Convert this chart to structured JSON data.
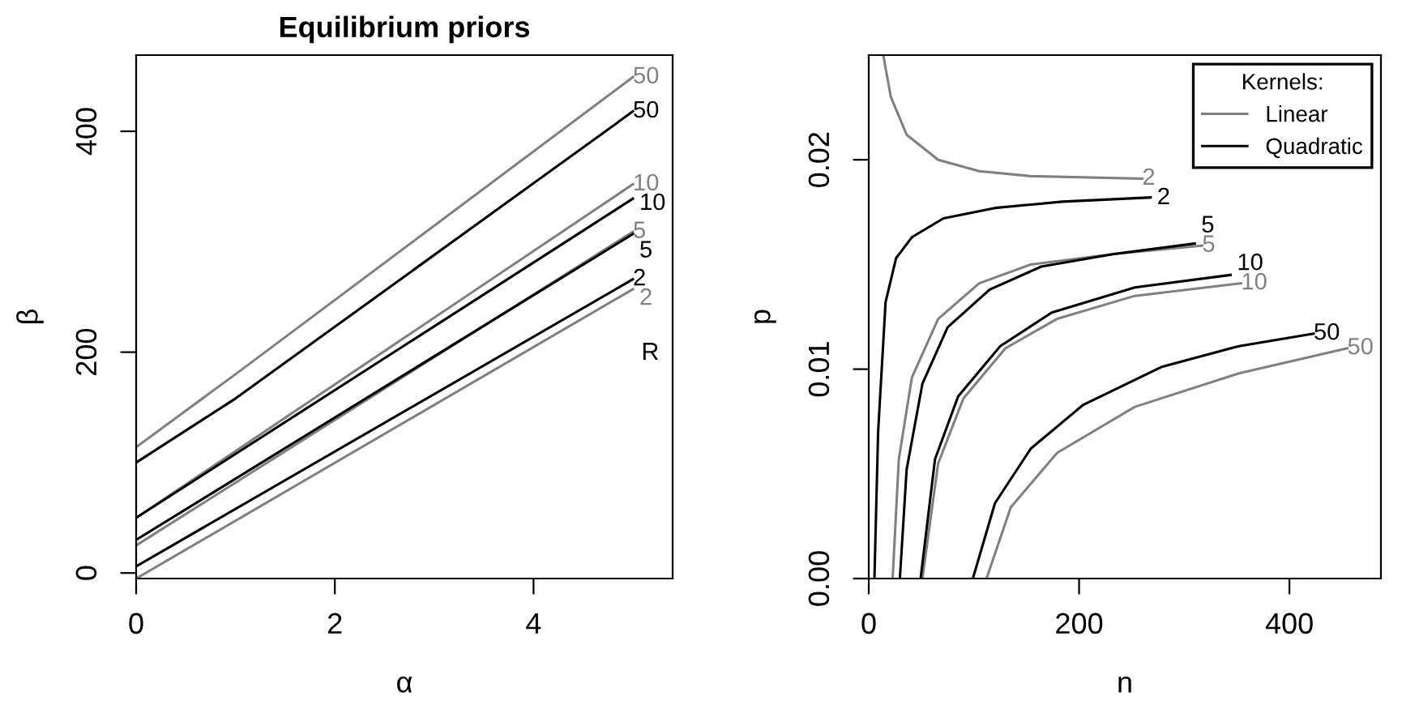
{
  "chart_data": [
    {
      "type": "line",
      "title": "Equilibrium priors",
      "xlabel": "α",
      "ylabel": "β",
      "xlim": [
        0,
        5.4
      ],
      "ylim": [
        -5,
        469
      ],
      "xticks": [
        0,
        2,
        4
      ],
      "yticks": [
        0,
        200,
        400
      ],
      "grid": false,
      "legend": false,
      "line_style": "solid",
      "marker": "none",
      "annotations": [
        "R"
      ],
      "series": [
        {
          "name": "50",
          "color": "#808080",
          "x": [
            0,
            1,
            5
          ],
          "values": [
            114,
            180,
            449
          ]
        },
        {
          "name": "50",
          "color": "#000000",
          "x": [
            0,
            1,
            5
          ],
          "values": [
            100,
            158,
            418
          ]
        },
        {
          "name": "10",
          "color": "#808080",
          "x": [
            0,
            5
          ],
          "values": [
            50,
            352
          ]
        },
        {
          "name": "10",
          "color": "#000000",
          "x": [
            0,
            5
          ],
          "values": [
            50,
            339
          ]
        },
        {
          "name": "5",
          "color": "#808080",
          "x": [
            0,
            5
          ],
          "values": [
            25,
            309
          ]
        },
        {
          "name": "5",
          "color": "#000000",
          "x": [
            0,
            5
          ],
          "values": [
            30,
            307
          ]
        },
        {
          "name": "2",
          "color": "#000000",
          "x": [
            0,
            5
          ],
          "values": [
            6,
            266
          ]
        },
        {
          "name": "2",
          "color": "#808080",
          "x": [
            0,
            5
          ],
          "values": [
            -5,
            257
          ]
        }
      ]
    },
    {
      "type": "line",
      "xlabel": "n",
      "ylabel": "p",
      "xlim": [
        0,
        487
      ],
      "ylim": [
        0,
        0.025
      ],
      "xticks": [
        0,
        200,
        400
      ],
      "yticks": [
        {
          "value": 0,
          "label": "0.00"
        },
        0.01,
        0.02
      ],
      "grid": false,
      "legend": "top right",
      "legend_title": "Kernels:",
      "line_style": "solid",
      "marker": "none",
      "annotations": [
        "Linear",
        "Quadratic"
      ],
      "series": [
        {
          "name": "2",
          "color": "#808080",
          "x": [
            13.8,
            21,
            36,
            66,
            105,
            154,
            260
          ],
          "values": [
            0.025,
            0.023,
            0.0212,
            0.02,
            0.01946,
            0.01922,
            0.0191
          ]
        },
        {
          "name": "2",
          "color": "#000000",
          "x": [
            5.4,
            8.9,
            16,
            26,
            41,
            71,
            120,
            184,
            268
          ],
          "values": [
            0,
            0.007,
            0.0132,
            0.0153,
            0.0163,
            0.0172,
            0.0177,
            0.018,
            0.0182
          ]
        },
        {
          "name": "5",
          "color": "#808080",
          "x": [
            22.7,
            28.6,
            41,
            66,
            105,
            154,
            233,
            317
          ],
          "values": [
            0,
            0.0057,
            0.0096,
            0.0124,
            0.0141,
            0.015,
            0.0155,
            0.0159
          ]
        },
        {
          "name": "5",
          "color": "#000000",
          "x": [
            29.6,
            36,
            51,
            75,
            115,
            164,
            233,
            310
          ],
          "values": [
            0,
            0.0052,
            0.0093,
            0.012,
            0.0138,
            0.0149,
            0.0155,
            0.016
          ]
        },
        {
          "name": "10",
          "color": "#808080",
          "x": [
            51,
            66,
            90,
            130,
            179,
            253,
            354
          ],
          "values": [
            0,
            0.0055,
            0.0086,
            0.011,
            0.0124,
            0.0135,
            0.0141
          ]
        },
        {
          "name": "10",
          "color": "#000000",
          "x": [
            49.3,
            63,
            85,
            125,
            174,
            253,
            344
          ],
          "values": [
            0,
            0.0057,
            0.0087,
            0.0111,
            0.0127,
            0.0139,
            0.0145
          ]
        },
        {
          "name": "50",
          "color": "#000000",
          "x": [
            99,
            120,
            154,
            204,
            278,
            352,
            423
          ],
          "values": [
            0,
            0.0036,
            0.0062,
            0.0083,
            0.0101,
            0.0111,
            0.0117
          ]
        },
        {
          "name": "50",
          "color": "#808080",
          "x": [
            112,
            135,
            179,
            253,
            352,
            455
          ],
          "values": [
            0,
            0.0034,
            0.006,
            0.0082,
            0.0098,
            0.011
          ]
        }
      ]
    }
  ]
}
